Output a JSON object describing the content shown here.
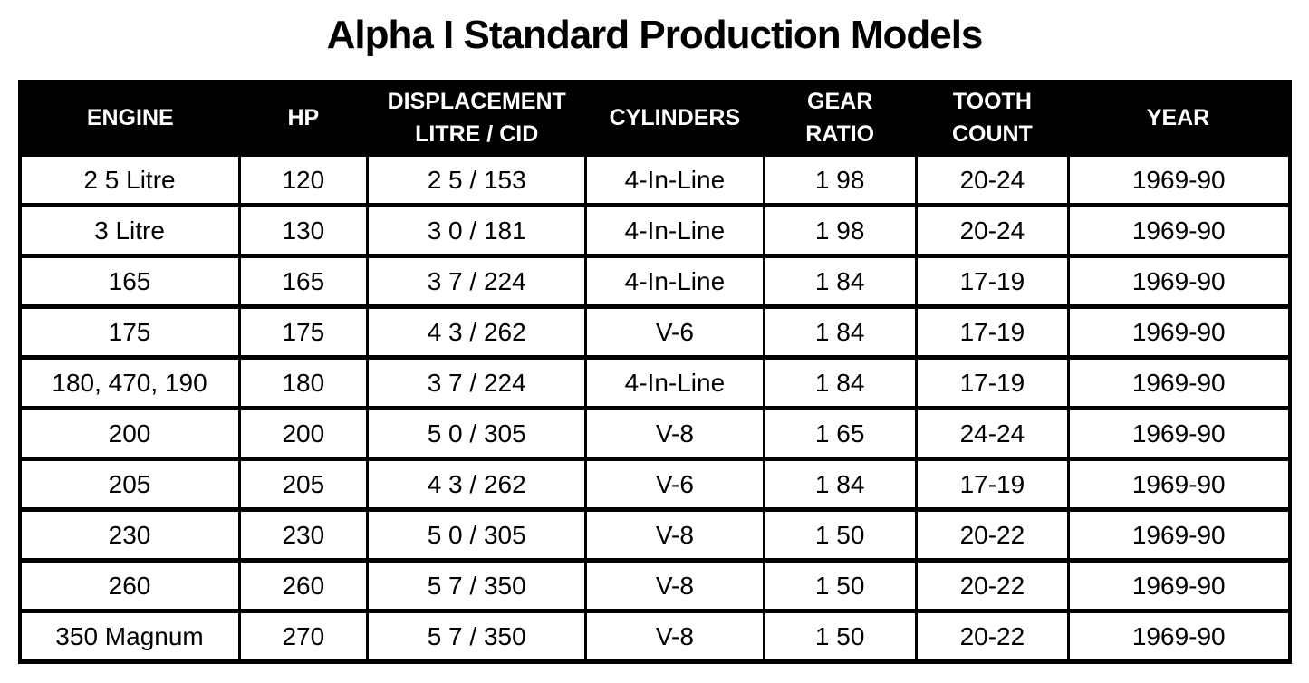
{
  "page_title": "Alpha I Standard Production Models",
  "colors": {
    "header_background": "#000000",
    "header_text": "#ffffff",
    "border": "#000000",
    "cell_background": "#ffffff",
    "cell_text": "#000000"
  },
  "table": {
    "columns": [
      "ENGINE",
      "HP",
      "DISPLACEMENT\nLITRE / CID",
      "CYLINDERS",
      "GEAR\nRATIO",
      "TOOTH\nCOUNT",
      "YEAR"
    ],
    "rows": [
      [
        "2 5 Litre",
        "120",
        "2 5 / 153",
        "4-In-Line",
        "1 98",
        "20-24",
        "1969-90"
      ],
      [
        "3 Litre",
        "130",
        "3 0 / 181",
        "4-In-Line",
        "1 98",
        "20-24",
        "1969-90"
      ],
      [
        "165",
        "165",
        "3 7 / 224",
        "4-In-Line",
        "1 84",
        "17-19",
        "1969-90"
      ],
      [
        "175",
        "175",
        "4 3 / 262",
        "V-6",
        "1 84",
        "17-19",
        "1969-90"
      ],
      [
        "180, 470, 190",
        "180",
        "3 7 / 224",
        "4-In-Line",
        "1 84",
        "17-19",
        "1969-90"
      ],
      [
        "200",
        "200",
        "5 0 / 305",
        "V-8",
        "1 65",
        "24-24",
        "1969-90"
      ],
      [
        "205",
        "205",
        "4 3 / 262",
        "V-6",
        "1 84",
        "17-19",
        "1969-90"
      ],
      [
        "230",
        "230",
        "5 0 / 305",
        "V-8",
        "1 50",
        "20-22",
        "1969-90"
      ],
      [
        "260",
        "260",
        "5 7 / 350",
        "V-8",
        "1 50",
        "20-22",
        "1969-90"
      ],
      [
        "350 Magnum",
        "270",
        "5 7 / 350",
        "V-8",
        "1 50",
        "20-22",
        "1969-90"
      ]
    ]
  }
}
